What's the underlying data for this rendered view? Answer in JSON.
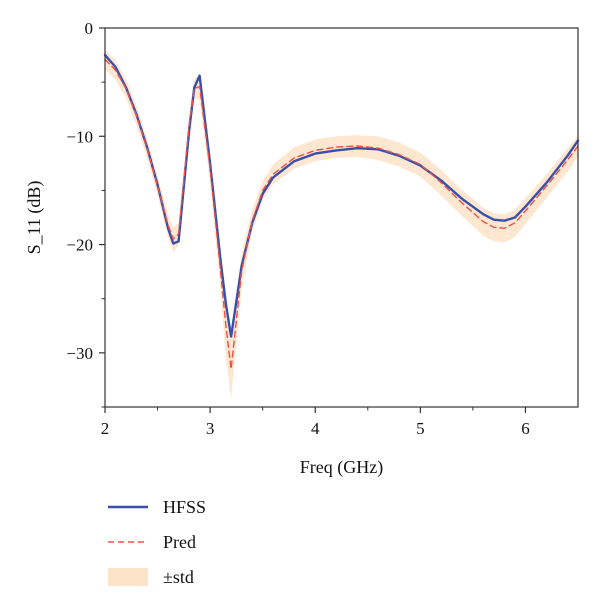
{
  "chart_data": {
    "type": "line",
    "xlabel": "Freq (GHz)",
    "ylabel": "S_11 (dB)",
    "xlim": [
      2,
      6.5
    ],
    "ylim": [
      -35,
      0
    ],
    "xticks": [
      2,
      3,
      4,
      5,
      6
    ],
    "yticks": [
      0,
      -10,
      -20,
      -30
    ],
    "grid": false,
    "legend": "bottom-left-below",
    "series": [
      {
        "name": "HFSS",
        "style": "solid",
        "color": "#3a4fa8",
        "x": [
          2.0,
          2.1,
          2.2,
          2.3,
          2.4,
          2.5,
          2.6,
          2.65,
          2.7,
          2.8,
          2.85,
          2.9,
          3.0,
          3.1,
          3.15,
          3.2,
          3.3,
          3.4,
          3.5,
          3.6,
          3.8,
          4.0,
          4.2,
          4.4,
          4.6,
          4.8,
          5.0,
          5.2,
          5.4,
          5.6,
          5.7,
          5.8,
          5.9,
          6.0,
          6.2,
          6.4,
          6.5
        ],
        "y": [
          -2.5,
          -3.6,
          -5.5,
          -8.0,
          -11.0,
          -14.5,
          -18.5,
          -19.9,
          -19.7,
          -9.5,
          -5.5,
          -4.4,
          -12.5,
          -21.5,
          -25.5,
          -28.5,
          -22.0,
          -18.0,
          -15.3,
          -13.8,
          -12.3,
          -11.6,
          -11.3,
          -11.1,
          -11.2,
          -11.8,
          -12.7,
          -14.1,
          -15.8,
          -17.2,
          -17.7,
          -17.8,
          -17.5,
          -16.5,
          -14.3,
          -11.8,
          -10.4
        ]
      },
      {
        "name": "Pred",
        "style": "dashed",
        "color": "#e8524a",
        "x": [
          2.0,
          2.1,
          2.2,
          2.3,
          2.4,
          2.5,
          2.6,
          2.65,
          2.7,
          2.8,
          2.85,
          2.9,
          3.0,
          3.1,
          3.15,
          3.2,
          3.3,
          3.4,
          3.5,
          3.6,
          3.8,
          4.0,
          4.2,
          4.4,
          4.6,
          4.8,
          5.0,
          5.2,
          5.4,
          5.6,
          5.7,
          5.8,
          5.9,
          6.0,
          6.2,
          6.4,
          6.5
        ],
        "y": [
          -2.9,
          -3.9,
          -5.6,
          -8.1,
          -11.1,
          -14.6,
          -18.2,
          -19.5,
          -19.0,
          -9.0,
          -5.6,
          -5.4,
          -13.0,
          -22.5,
          -27.5,
          -31.5,
          -22.5,
          -17.8,
          -15.0,
          -13.5,
          -12.0,
          -11.3,
          -11.0,
          -10.9,
          -11.1,
          -11.7,
          -12.6,
          -14.3,
          -16.2,
          -17.9,
          -18.4,
          -18.5,
          -18.0,
          -16.9,
          -14.6,
          -12.2,
          -10.9
        ]
      }
    ],
    "band": {
      "name": "±std",
      "color": "#fde3c8",
      "x": [
        2.0,
        2.1,
        2.2,
        2.3,
        2.4,
        2.5,
        2.6,
        2.65,
        2.7,
        2.8,
        2.85,
        2.9,
        3.0,
        3.1,
        3.15,
        3.2,
        3.3,
        3.4,
        3.5,
        3.6,
        3.8,
        4.0,
        4.2,
        4.4,
        4.6,
        4.8,
        5.0,
        5.2,
        5.4,
        5.6,
        5.7,
        5.8,
        5.9,
        6.0,
        6.2,
        6.4,
        6.5
      ],
      "upper": [
        -2.0,
        -3.0,
        -4.7,
        -7.2,
        -10.2,
        -13.7,
        -17.2,
        -18.4,
        -18.0,
        -8.1,
        -4.7,
        -4.3,
        -11.8,
        -20.8,
        -24.5,
        -28.6,
        -20.8,
        -16.8,
        -14.1,
        -12.6,
        -11.0,
        -10.3,
        -10.0,
        -9.9,
        -10.0,
        -10.6,
        -11.5,
        -13.1,
        -15.0,
        -16.6,
        -17.1,
        -17.2,
        -16.8,
        -15.7,
        -13.5,
        -11.1,
        -9.9
      ],
      "lower": [
        -3.8,
        -4.8,
        -6.5,
        -9.0,
        -12.0,
        -15.5,
        -19.3,
        -20.7,
        -20.1,
        -9.9,
        -6.5,
        -6.6,
        -14.2,
        -24.2,
        -30.5,
        -34.2,
        -24.2,
        -18.8,
        -15.9,
        -14.4,
        -13.0,
        -12.3,
        -12.0,
        -11.9,
        -12.2,
        -12.8,
        -13.7,
        -15.5,
        -17.4,
        -19.2,
        -19.7,
        -19.8,
        -19.3,
        -18.1,
        -15.7,
        -13.3,
        -11.9
      ]
    }
  }
}
